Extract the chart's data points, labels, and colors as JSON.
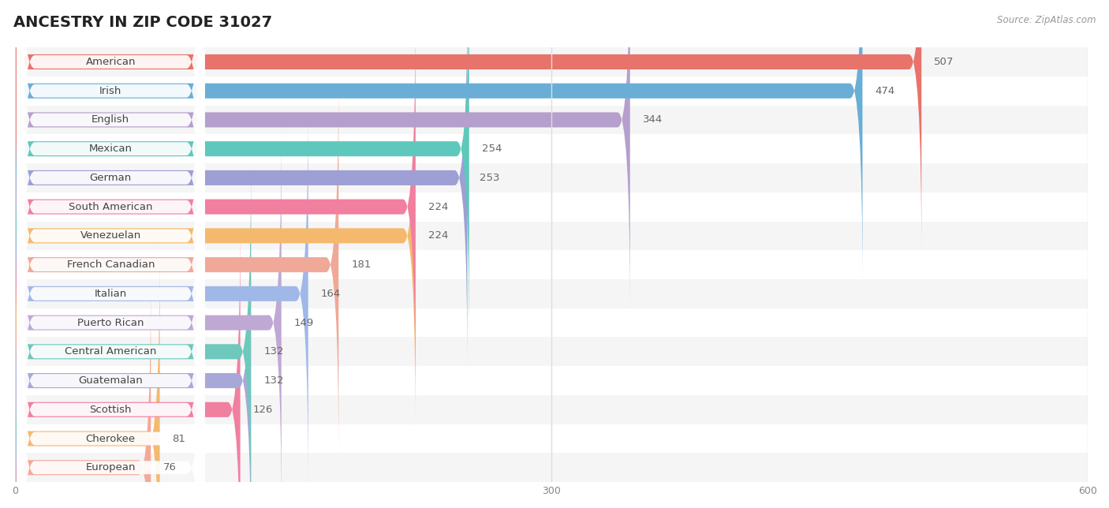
{
  "title": "ANCESTRY IN ZIP CODE 31027",
  "source": "Source: ZipAtlas.com",
  "categories": [
    "American",
    "Irish",
    "English",
    "Mexican",
    "German",
    "South American",
    "Venezuelan",
    "French Canadian",
    "Italian",
    "Puerto Rican",
    "Central American",
    "Guatemalan",
    "Scottish",
    "Cherokee",
    "European"
  ],
  "values": [
    507,
    474,
    344,
    254,
    253,
    224,
    224,
    181,
    164,
    149,
    132,
    132,
    126,
    81,
    76
  ],
  "colors": [
    "#E8736A",
    "#6AAED6",
    "#B59FCC",
    "#5EC8BC",
    "#9E9FD4",
    "#F07FA0",
    "#F5B96E",
    "#F0A898",
    "#A0B8E8",
    "#C0A8D4",
    "#6EC8BC",
    "#A8A8D8",
    "#F07FA0",
    "#F5B96E",
    "#F5A898"
  ],
  "xlim": [
    0,
    600
  ],
  "xticks": [
    0,
    300,
    600
  ],
  "background_color": "#ffffff",
  "row_colors": [
    "#f5f5f5",
    "#ffffff"
  ],
  "grid_color": "#dddddd",
  "value_color": "#666666",
  "label_color": "#444444",
  "title_fontsize": 14,
  "label_fontsize": 9.5,
  "value_fontsize": 9.5,
  "source_fontsize": 8.5
}
